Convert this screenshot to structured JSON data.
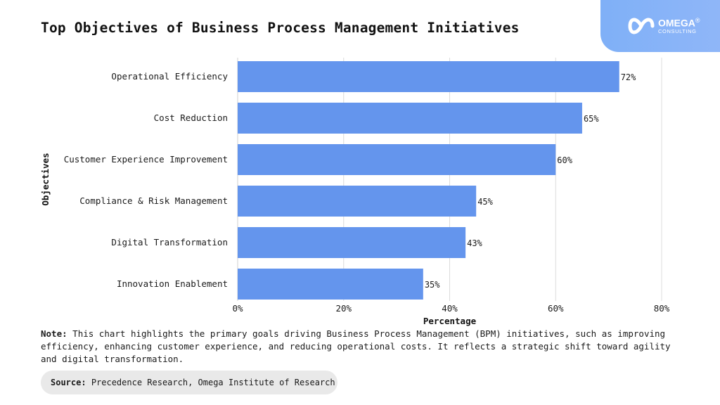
{
  "title": "Top Objectives of Business Process Management Initiatives",
  "logo": {
    "name": "OMEGA",
    "reg": "®",
    "sub": "CONSULTING"
  },
  "chart_data": {
    "type": "bar",
    "orientation": "horizontal",
    "categories": [
      "Operational Efficiency",
      "Cost Reduction",
      "Customer Experience Improvement",
      "Compliance & Risk Management",
      "Digital Transformation",
      "Innovation Enablement"
    ],
    "values": [
      72,
      65,
      60,
      45,
      43,
      35
    ],
    "value_labels": [
      "72%",
      "65%",
      "60%",
      "45%",
      "43%",
      "35%"
    ],
    "xlabel": "Percentage",
    "ylabel": "Objectives",
    "xlim": [
      0,
      80
    ],
    "xticks": [
      0,
      20,
      40,
      60,
      80
    ],
    "xtick_labels": [
      "0%",
      "20%",
      "40%",
      "60%",
      "80%"
    ],
    "grid": "vertical",
    "bar_color": "#6495ed"
  },
  "note": {
    "label": "Note:",
    "text": "This chart highlights the primary goals driving Business Process Management (BPM) initiatives, such as improving efficiency, enhancing customer experience, and reducing operational costs. It reflects a strategic shift toward agility and digital transformation."
  },
  "source": {
    "label": "Source:",
    "text": "Precedence Research, Omega Institute of Research"
  }
}
